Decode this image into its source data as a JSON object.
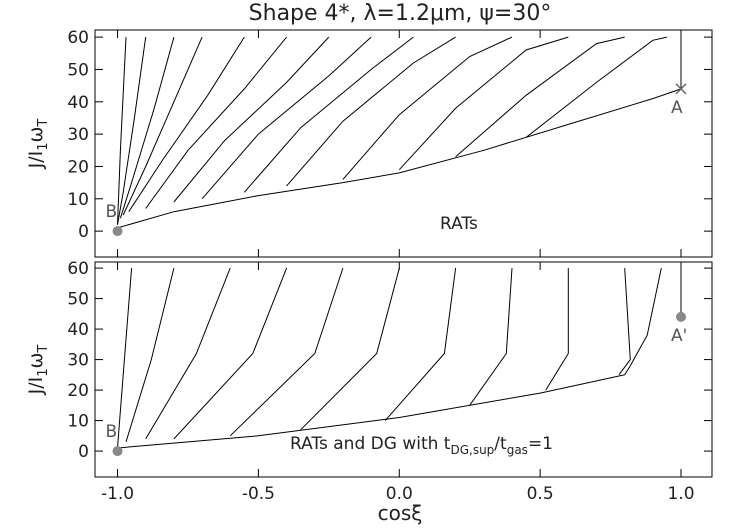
{
  "chart_data": [
    {
      "type": "line",
      "title": "Shape 4*, λ=1.2μm, ψ=30°",
      "ylabel": [
        "J/I",
        "1",
        "ω",
        "T"
      ],
      "annotation": [
        "RATs"
      ],
      "xlim": [
        -1.08,
        1.11
      ],
      "ylim": [
        -8,
        62.2
      ],
      "xticks": [
        {
          "value": -1,
          "label": "-1.0"
        },
        {
          "value": -0.5,
          "label": "-0.5"
        },
        {
          "value": 0,
          "label": "0.0"
        },
        0.5,
        {
          "value": 1,
          "label": "1.0"
        }
      ],
      "yticks": [
        0,
        10,
        20,
        30,
        40,
        50,
        60
      ],
      "points": [
        {
          "label": "A",
          "x": 1,
          "y": 44,
          "marker": "x"
        },
        {
          "label": "B",
          "x": -1,
          "y": 0,
          "marker": "circle"
        }
      ],
      "series": [
        {
          "color": "#000000",
          "x": [
            -0.97,
            -0.99,
            -1.0
          ],
          "values": [
            60,
            25,
            2
          ]
        },
        {
          "color": "#000000",
          "x": [
            -0.9,
            -0.94,
            -0.98,
            -1.0
          ],
          "values": [
            60,
            35,
            12,
            2
          ]
        },
        {
          "color": "#000000",
          "x": [
            -0.8,
            -0.87,
            -0.95,
            -0.99
          ],
          "values": [
            60,
            38,
            15,
            4
          ]
        },
        {
          "color": "#000000",
          "x": [
            -0.7,
            -0.8,
            -0.9,
            -0.98
          ],
          "values": [
            60,
            40,
            20,
            5
          ]
        },
        {
          "color": "#000000",
          "x": [
            -0.55,
            -0.68,
            -0.84,
            -0.96
          ],
          "values": [
            60,
            42,
            22,
            6
          ]
        },
        {
          "color": "#000000",
          "x": [
            -0.4,
            -0.55,
            -0.75,
            -0.9
          ],
          "values": [
            60,
            44,
            25,
            7
          ]
        },
        {
          "color": "#000000",
          "x": [
            -0.25,
            -0.4,
            -0.62,
            -0.8
          ],
          "values": [
            60,
            46,
            28,
            9
          ]
        },
        {
          "color": "#000000",
          "x": [
            -0.1,
            -0.25,
            -0.5,
            -0.7
          ],
          "values": [
            60,
            48,
            30,
            10
          ]
        },
        {
          "color": "#000000",
          "x": [
            0.05,
            -0.1,
            -0.35,
            -0.55
          ],
          "values": [
            60,
            50,
            32,
            12
          ]
        },
        {
          "color": "#000000",
          "x": [
            0.2,
            0.05,
            -0.2,
            -0.4
          ],
          "values": [
            60,
            52,
            34,
            14
          ]
        },
        {
          "color": "#000000",
          "x": [
            0.4,
            0.25,
            0.0,
            -0.2
          ],
          "values": [
            60,
            54,
            36,
            16
          ]
        },
        {
          "color": "#000000",
          "x": [
            0.6,
            0.45,
            0.2,
            0.0
          ],
          "values": [
            60,
            56,
            38,
            19
          ]
        },
        {
          "color": "#000000",
          "x": [
            0.8,
            0.7,
            0.45,
            0.2
          ],
          "values": [
            60,
            58,
            42,
            23
          ]
        },
        {
          "color": "#000000",
          "x": [
            0.95,
            0.9,
            0.7,
            0.45
          ],
          "values": [
            60,
            59,
            46,
            29
          ]
        },
        {
          "color": "#000000",
          "x": [
            -1.0,
            -0.8,
            -0.5,
            -0.2,
            0.0,
            0.3,
            0.6,
            0.9,
            1.0
          ],
          "values": [
            1,
            6,
            11,
            15,
            18,
            25,
            33,
            41,
            44
          ]
        },
        {
          "color": "#000000",
          "x": [
            1.0,
            1.0
          ],
          "values": [
            60,
            44
          ]
        }
      ]
    },
    {
      "type": "line",
      "xlabel": "cosξ",
      "ylabel": [
        "J/I",
        "1",
        "ω",
        "T"
      ],
      "annotation": [
        "RATs and DG with t",
        "DG,sup",
        "/t",
        "gas",
        "=1"
      ],
      "xlim": [
        -1.08,
        1.11
      ],
      "ylim": [
        -8.5,
        62
      ],
      "xticks": [
        {
          "value": -1,
          "label": "-1.0"
        },
        {
          "value": -0.5,
          "label": "-0.5"
        },
        {
          "value": 0,
          "label": "0.0"
        },
        0.5,
        {
          "value": 1,
          "label": "1.0"
        }
      ],
      "yticks": [
        0,
        10,
        20,
        30,
        40,
        50,
        60
      ],
      "points": [
        {
          "label": "A'",
          "x": 1,
          "y": 44,
          "marker": "circle"
        },
        {
          "label": "B",
          "x": -1,
          "y": 0,
          "marker": "circle"
        }
      ],
      "series": [
        {
          "color": "#000000",
          "x": [
            -0.95,
            -0.98,
            -1.0
          ],
          "values": [
            60,
            25,
            1
          ]
        },
        {
          "color": "#000000",
          "x": [
            -0.8,
            -0.88,
            -0.97
          ],
          "values": [
            60,
            30,
            3
          ]
        },
        {
          "color": "#000000",
          "x": [
            -0.6,
            -0.72,
            -0.9
          ],
          "values": [
            60,
            32,
            4
          ]
        },
        {
          "color": "#000000",
          "x": [
            -0.4,
            -0.52,
            -0.8
          ],
          "values": [
            60,
            32,
            4
          ]
        },
        {
          "color": "#000000",
          "x": [
            -0.2,
            -0.3,
            -0.6
          ],
          "values": [
            60,
            32,
            5
          ]
        },
        {
          "color": "#000000",
          "x": [
            0.0,
            -0.08,
            -0.35
          ],
          "values": [
            60,
            32,
            7
          ]
        },
        {
          "color": "#000000",
          "x": [
            0.2,
            0.16,
            -0.05
          ],
          "values": [
            60,
            32,
            10
          ]
        },
        {
          "color": "#000000",
          "x": [
            0.4,
            0.38,
            0.25
          ],
          "values": [
            60,
            32,
            15
          ]
        },
        {
          "color": "#000000",
          "x": [
            0.6,
            0.6,
            0.52
          ],
          "values": [
            60,
            32,
            20
          ]
        },
        {
          "color": "#000000",
          "x": [
            0.8,
            0.82,
            0.78
          ],
          "values": [
            60,
            30,
            25
          ]
        },
        {
          "color": "#000000",
          "x": [
            0.93,
            0.88,
            0.82,
            0.8
          ],
          "values": [
            60,
            38,
            28,
            25
          ]
        },
        {
          "color": "#000000",
          "x": [
            -1.0,
            -0.5,
            0.0,
            0.5,
            0.8
          ],
          "values": [
            1,
            5,
            11,
            19,
            25
          ]
        },
        {
          "color": "#000000",
          "x": [
            1.0,
            1.0
          ],
          "values": [
            60,
            44
          ]
        }
      ]
    }
  ]
}
